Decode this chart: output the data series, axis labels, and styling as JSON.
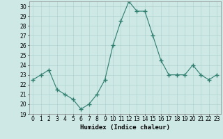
{
  "x": [
    0,
    1,
    2,
    3,
    4,
    5,
    6,
    7,
    8,
    9,
    10,
    11,
    12,
    13,
    14,
    15,
    16,
    17,
    18,
    19,
    20,
    21,
    22,
    23
  ],
  "y": [
    22.5,
    23.0,
    23.5,
    21.5,
    21.0,
    20.5,
    19.5,
    20.0,
    21.0,
    22.5,
    26.0,
    28.5,
    30.5,
    29.5,
    29.5,
    27.0,
    24.5,
    23.0,
    23.0,
    23.0,
    24.0,
    23.0,
    22.5,
    23.0
  ],
  "line_color": "#2e7d6e",
  "marker": "+",
  "marker_size": 4,
  "bg_color": "#cde8e5",
  "grid_color": "#aacfcc",
  "xlabel": "Humidex (Indice chaleur)",
  "xlim": [
    -0.5,
    23.5
  ],
  "ylim": [
    19,
    30.5
  ],
  "yticks": [
    19,
    20,
    21,
    22,
    23,
    24,
    25,
    26,
    27,
    28,
    29,
    30
  ],
  "xticks": [
    0,
    1,
    2,
    3,
    4,
    5,
    6,
    7,
    8,
    9,
    10,
    11,
    12,
    13,
    14,
    15,
    16,
    17,
    18,
    19,
    20,
    21,
    22,
    23
  ],
  "tick_fontsize": 5.5,
  "xlabel_fontsize": 6.5
}
